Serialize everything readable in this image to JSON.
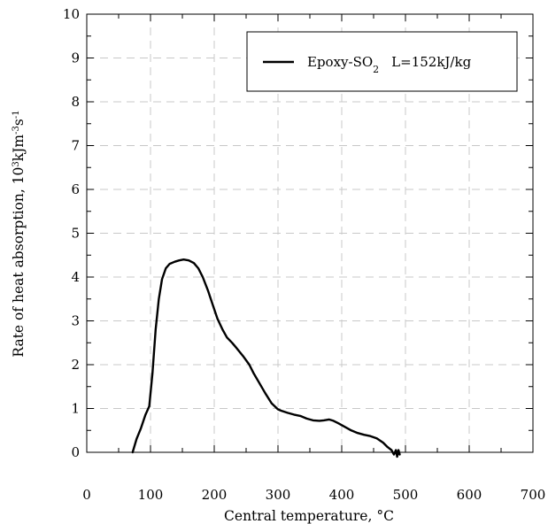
{
  "chart_data": {
    "type": "line",
    "xlabel": "Central temperature, °C",
    "ylabel_main": "Rate of heat absorption, 10",
    "ylabel_sup1": "3",
    "ylabel_mid": "kJm",
    "ylabel_sup2": "-3",
    "ylabel_s": "s",
    "ylabel_sup3": "-1",
    "xlim": [
      0,
      700
    ],
    "ylim": [
      0,
      10
    ],
    "x_ticks": [
      0,
      100,
      200,
      300,
      400,
      500,
      600,
      700
    ],
    "y_ticks": [
      0,
      1,
      2,
      3,
      4,
      5,
      6,
      7,
      8,
      9,
      10
    ],
    "grid": true,
    "legend_position": "top-right",
    "series": [
      {
        "name_prefix": "Epoxy-SO",
        "name_sub": "2",
        "name_suffix": "L=152kJ/kg",
        "color": "#000000",
        "x": [
          72,
          78,
          85,
          92,
          98,
          103,
          108,
          113,
          118,
          124,
          130,
          138,
          145,
          152,
          160,
          168,
          175,
          182,
          190,
          198,
          205,
          213,
          220,
          228,
          235,
          245,
          255,
          262,
          270,
          280,
          290,
          300,
          305,
          315,
          325,
          335,
          345,
          355,
          365,
          372,
          380,
          387,
          395,
          405,
          415,
          425,
          435,
          445,
          455,
          465,
          472,
          478,
          482,
          485,
          487,
          489,
          491
        ],
        "y": [
          0.0,
          0.3,
          0.55,
          0.85,
          1.05,
          1.8,
          2.8,
          3.5,
          3.95,
          4.2,
          4.3,
          4.35,
          4.38,
          4.4,
          4.38,
          4.32,
          4.2,
          4.0,
          3.7,
          3.35,
          3.05,
          2.8,
          2.62,
          2.5,
          2.38,
          2.2,
          2.0,
          1.8,
          1.6,
          1.35,
          1.12,
          0.98,
          0.95,
          0.9,
          0.86,
          0.83,
          0.77,
          0.73,
          0.72,
          0.73,
          0.75,
          0.72,
          0.66,
          0.58,
          0.5,
          0.44,
          0.4,
          0.37,
          0.32,
          0.22,
          0.12,
          0.05,
          -0.05,
          0.05,
          -0.1,
          0.05,
          -0.05
        ]
      }
    ]
  }
}
